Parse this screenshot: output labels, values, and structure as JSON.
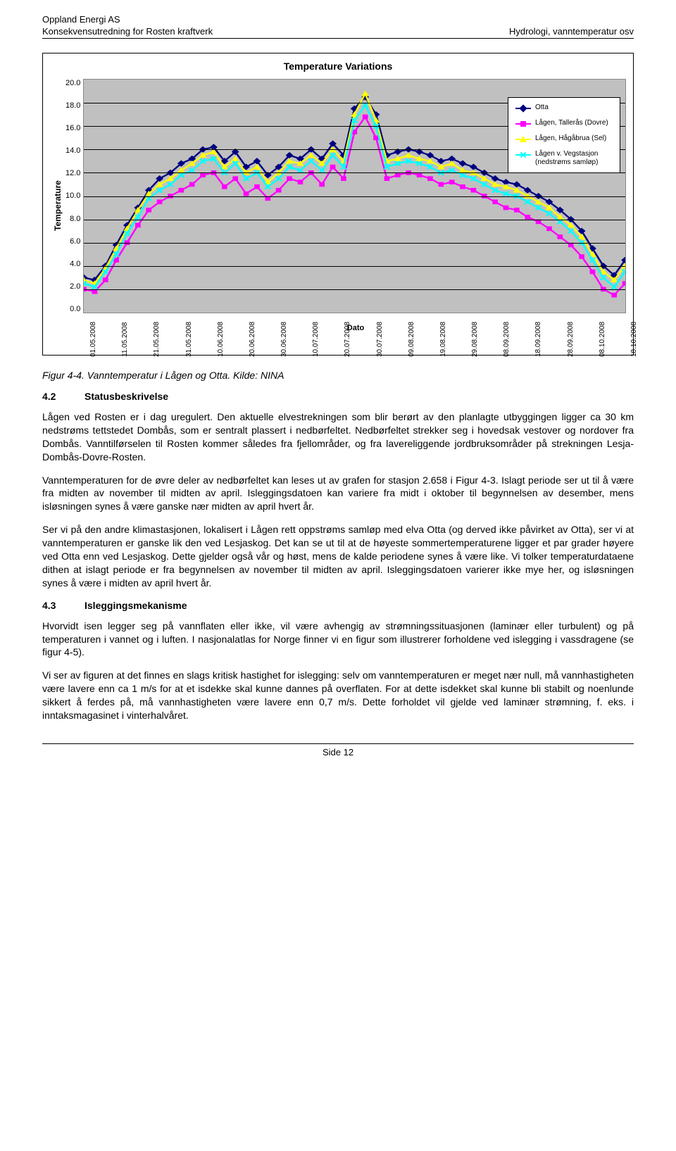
{
  "header": {
    "company": "Oppland Energi AS",
    "project": "Konsekvensutredning for Rosten kraftverk",
    "topic": "Hydrologi, vanntemperatur osv"
  },
  "chart": {
    "type": "line",
    "title": "Temperature Variations",
    "ylabel": "Temperature",
    "xlabel": "Dato",
    "ylim": [
      0,
      20
    ],
    "ytick_step": 2,
    "yticks": [
      "20.0",
      "18.0",
      "16.0",
      "14.0",
      "12.0",
      "10.0",
      "8.0",
      "6.0",
      "4.0",
      "2.0",
      "0.0"
    ],
    "xticks": [
      "01.05.2008",
      "11.05.2008",
      "21.05.2008",
      "31.05.2008",
      "10.06.2008",
      "20.06.2008",
      "30.06.2008",
      "10.07.2008",
      "20.07.2008",
      "30.07.2008",
      "09.08.2008",
      "19.08.2008",
      "29.08.2008",
      "08.09.2008",
      "18.09.2008",
      "28.09.2008",
      "08.10.2008",
      "18.10.2008"
    ],
    "plot_background": "#c0c0c0",
    "grid_color": "#000000",
    "title_fontsize": 14,
    "label_fontsize": 12,
    "tick_fontsize": 10,
    "legend_position": "right",
    "series": [
      {
        "name": "Otta",
        "color": "#000080",
        "marker": "diamond",
        "values": [
          3.0,
          2.8,
          4.0,
          5.8,
          7.5,
          9.0,
          10.5,
          11.5,
          12.0,
          12.8,
          13.2,
          14.0,
          14.2,
          13.0,
          13.8,
          12.5,
          13.0,
          11.8,
          12.5,
          13.5,
          13.2,
          14.0,
          13.2,
          14.5,
          13.5,
          17.5,
          18.5,
          17.0,
          13.5,
          13.8,
          14.0,
          13.8,
          13.5,
          13.0,
          13.2,
          12.8,
          12.5,
          12.0,
          11.5,
          11.2,
          11.0,
          10.5,
          10.0,
          9.5,
          8.8,
          8.0,
          7.0,
          5.5,
          4.0,
          3.2,
          4.5
        ]
      },
      {
        "name": "Lågen, Tallerås (Dovre)",
        "color": "#ff00ff",
        "marker": "square",
        "values": [
          2.0,
          1.8,
          2.8,
          4.5,
          6.0,
          7.5,
          8.8,
          9.5,
          10.0,
          10.5,
          11.0,
          11.8,
          12.0,
          10.8,
          11.5,
          10.2,
          10.8,
          9.8,
          10.5,
          11.5,
          11.2,
          12.0,
          11.0,
          12.5,
          11.5,
          15.5,
          16.8,
          15.0,
          11.5,
          11.8,
          12.0,
          11.8,
          11.5,
          11.0,
          11.2,
          10.8,
          10.5,
          10.0,
          9.5,
          9.0,
          8.8,
          8.2,
          7.8,
          7.2,
          6.5,
          5.8,
          4.8,
          3.5,
          2.0,
          1.5,
          2.5
        ]
      },
      {
        "name": "Lågen, Hågåbrua (Sel)",
        "color": "#ffff00",
        "marker": "triangle",
        "values": [
          2.8,
          2.5,
          3.8,
          5.5,
          7.2,
          8.8,
          10.2,
          11.0,
          11.5,
          12.2,
          12.8,
          13.5,
          13.8,
          12.5,
          13.2,
          12.0,
          12.5,
          11.2,
          12.0,
          13.0,
          12.8,
          13.5,
          12.8,
          14.0,
          13.0,
          17.0,
          18.8,
          16.5,
          13.0,
          13.2,
          13.5,
          13.2,
          13.0,
          12.5,
          12.8,
          12.2,
          12.0,
          11.5,
          11.0,
          10.8,
          10.5,
          10.0,
          9.5,
          9.0,
          8.2,
          7.5,
          6.5,
          5.0,
          3.5,
          2.8,
          4.0
        ]
      },
      {
        "name": "Lågen v. Vegstasjon (nedstrøms samløp)",
        "color": "#00ffff",
        "marker": "x",
        "values": [
          2.5,
          2.2,
          3.5,
          5.0,
          6.8,
          8.2,
          9.8,
          10.5,
          11.0,
          11.8,
          12.2,
          13.0,
          13.2,
          12.0,
          12.8,
          11.5,
          12.0,
          10.8,
          11.5,
          12.5,
          12.2,
          13.0,
          12.2,
          13.5,
          12.5,
          16.5,
          17.8,
          16.0,
          12.5,
          12.8,
          13.0,
          12.8,
          12.5,
          12.0,
          12.2,
          11.8,
          11.5,
          11.0,
          10.5,
          10.2,
          10.0,
          9.5,
          9.0,
          8.5,
          7.8,
          7.0,
          6.0,
          4.5,
          3.0,
          2.2,
          3.5
        ]
      }
    ]
  },
  "caption": "Figur 4-4. Vanntemperatur i Lågen og Otta. Kilde: NINA",
  "sections": {
    "s42": {
      "num": "4.2",
      "title": "Statusbeskrivelse"
    },
    "s43": {
      "num": "4.3",
      "title": "Isleggingsmekanisme"
    }
  },
  "paragraphs": {
    "p1": "Lågen ved Rosten er i dag uregulert. Den aktuelle elvestrekningen som blir berørt av den planlagte utbyggingen ligger ca 30 km nedstrøms tettstedet Dombås, som er sentralt plassert i nedbørfeltet. Nedbørfeltet strekker seg i hovedsak vestover og nordover fra Dombås. Vanntilførselen til Rosten kommer således fra fjellområder, og fra lavereliggende jordbruksområder på strekningen Lesja-Dombås-Dovre-Rosten.",
    "p2": "Vanntemperaturen for de øvre deler av nedbørfeltet kan leses ut av grafen for stasjon 2.658 i Figur 4-3. Islagt periode ser ut til å være fra midten av november til midten av april. Isleggingsdatoen kan variere fra midt i oktober til begynnelsen av desember, mens isløsningen synes å være ganske nær midten av april hvert år.",
    "p3": "Ser vi på den andre klimastasjonen, lokalisert i Lågen rett oppstrøms samløp med elva Otta (og derved ikke påvirket av Otta), ser vi at vanntemperaturen er ganske lik den ved Lesjaskog. Det kan se ut til at de høyeste sommertemperaturene ligger et par grader høyere ved Otta enn ved Lesjaskog. Dette gjelder også vår og høst, mens de kalde periodene synes å være like. Vi tolker temperaturdataene dithen at islagt periode er fra begynnelsen av november til midten av april. Isleggingsdatoen varierer ikke mye her, og isløsningen synes å være i midten av april hvert år.",
    "p4": "Hvorvidt isen legger seg på vannflaten eller ikke, vil være avhengig av strømningssituasjonen (laminær eller turbulent) og på temperaturen i vannet og i luften. I nasjonalatlas for Norge finner vi en figur som illustrerer forholdene ved islegging i vassdragene (se figur 4-5).",
    "p5": "Vi ser av figuren at det finnes en slags kritisk hastighet for islegging: selv om vanntemperaturen er meget nær null, må vannhastigheten være lavere enn ca 1 m/s for at et isdekke skal kunne dannes på overflaten. For at dette isdekket skal kunne bli stabilt og noenlunde sikkert å ferdes på, må vannhastigheten være lavere enn 0,7 m/s. Dette forholdet vil gjelde ved laminær strømning, f. eks. i inntaksmagasinet i vinterhalvåret."
  },
  "footer": "Side 12"
}
